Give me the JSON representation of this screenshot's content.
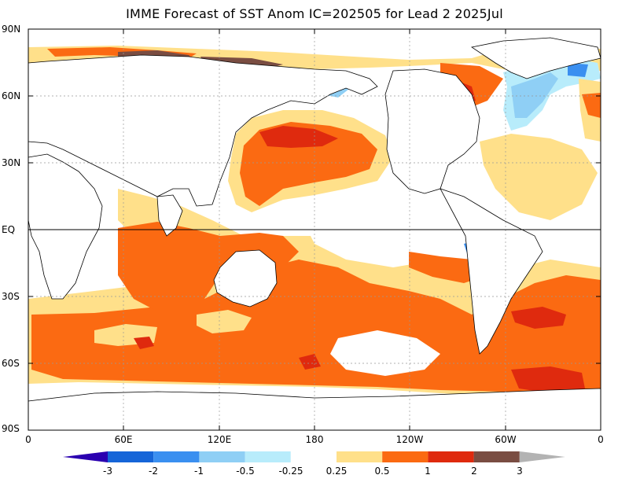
{
  "title": "IMME Forecast of SST Anom IC=202505 for Lead 2 2025Jul",
  "lat_labels": [
    "90N",
    "60N",
    "30N",
    "EQ",
    "30S",
    "60S",
    "90S"
  ],
  "lon_labels": [
    "0",
    "60E",
    "120E",
    "180",
    "120W",
    "60W",
    "0"
  ],
  "colorbar": {
    "labels": [
      "-3",
      "-2",
      "-1",
      "-0.5",
      "-0.25",
      "0.25",
      "0.5",
      "1",
      "2",
      "3"
    ],
    "colors": [
      "#2a00b0",
      "#1565d8",
      "#3a8ff0",
      "#8fcff5",
      "#b8ecfb",
      "#ffffff",
      "#ffe08a",
      "#fb6a12",
      "#df2a0e",
      "#7a4d42",
      "#b3b3b3"
    ]
  },
  "legend_colors": {
    "land": "#ffffff",
    "anom_0_25_to_0_5": "#ffe08a",
    "anom_0_5_to_1": "#fb6a12",
    "anom_1_to_2": "#df2a0e",
    "anom_2_to_3": "#7a4d42",
    "anom_neg_0_25_to_neg_0_5": "#b8ecfb",
    "anom_neg_0_5_to_neg_1": "#8fcff5",
    "anom_neg_1_to_neg_2": "#3a8ff0"
  }
}
